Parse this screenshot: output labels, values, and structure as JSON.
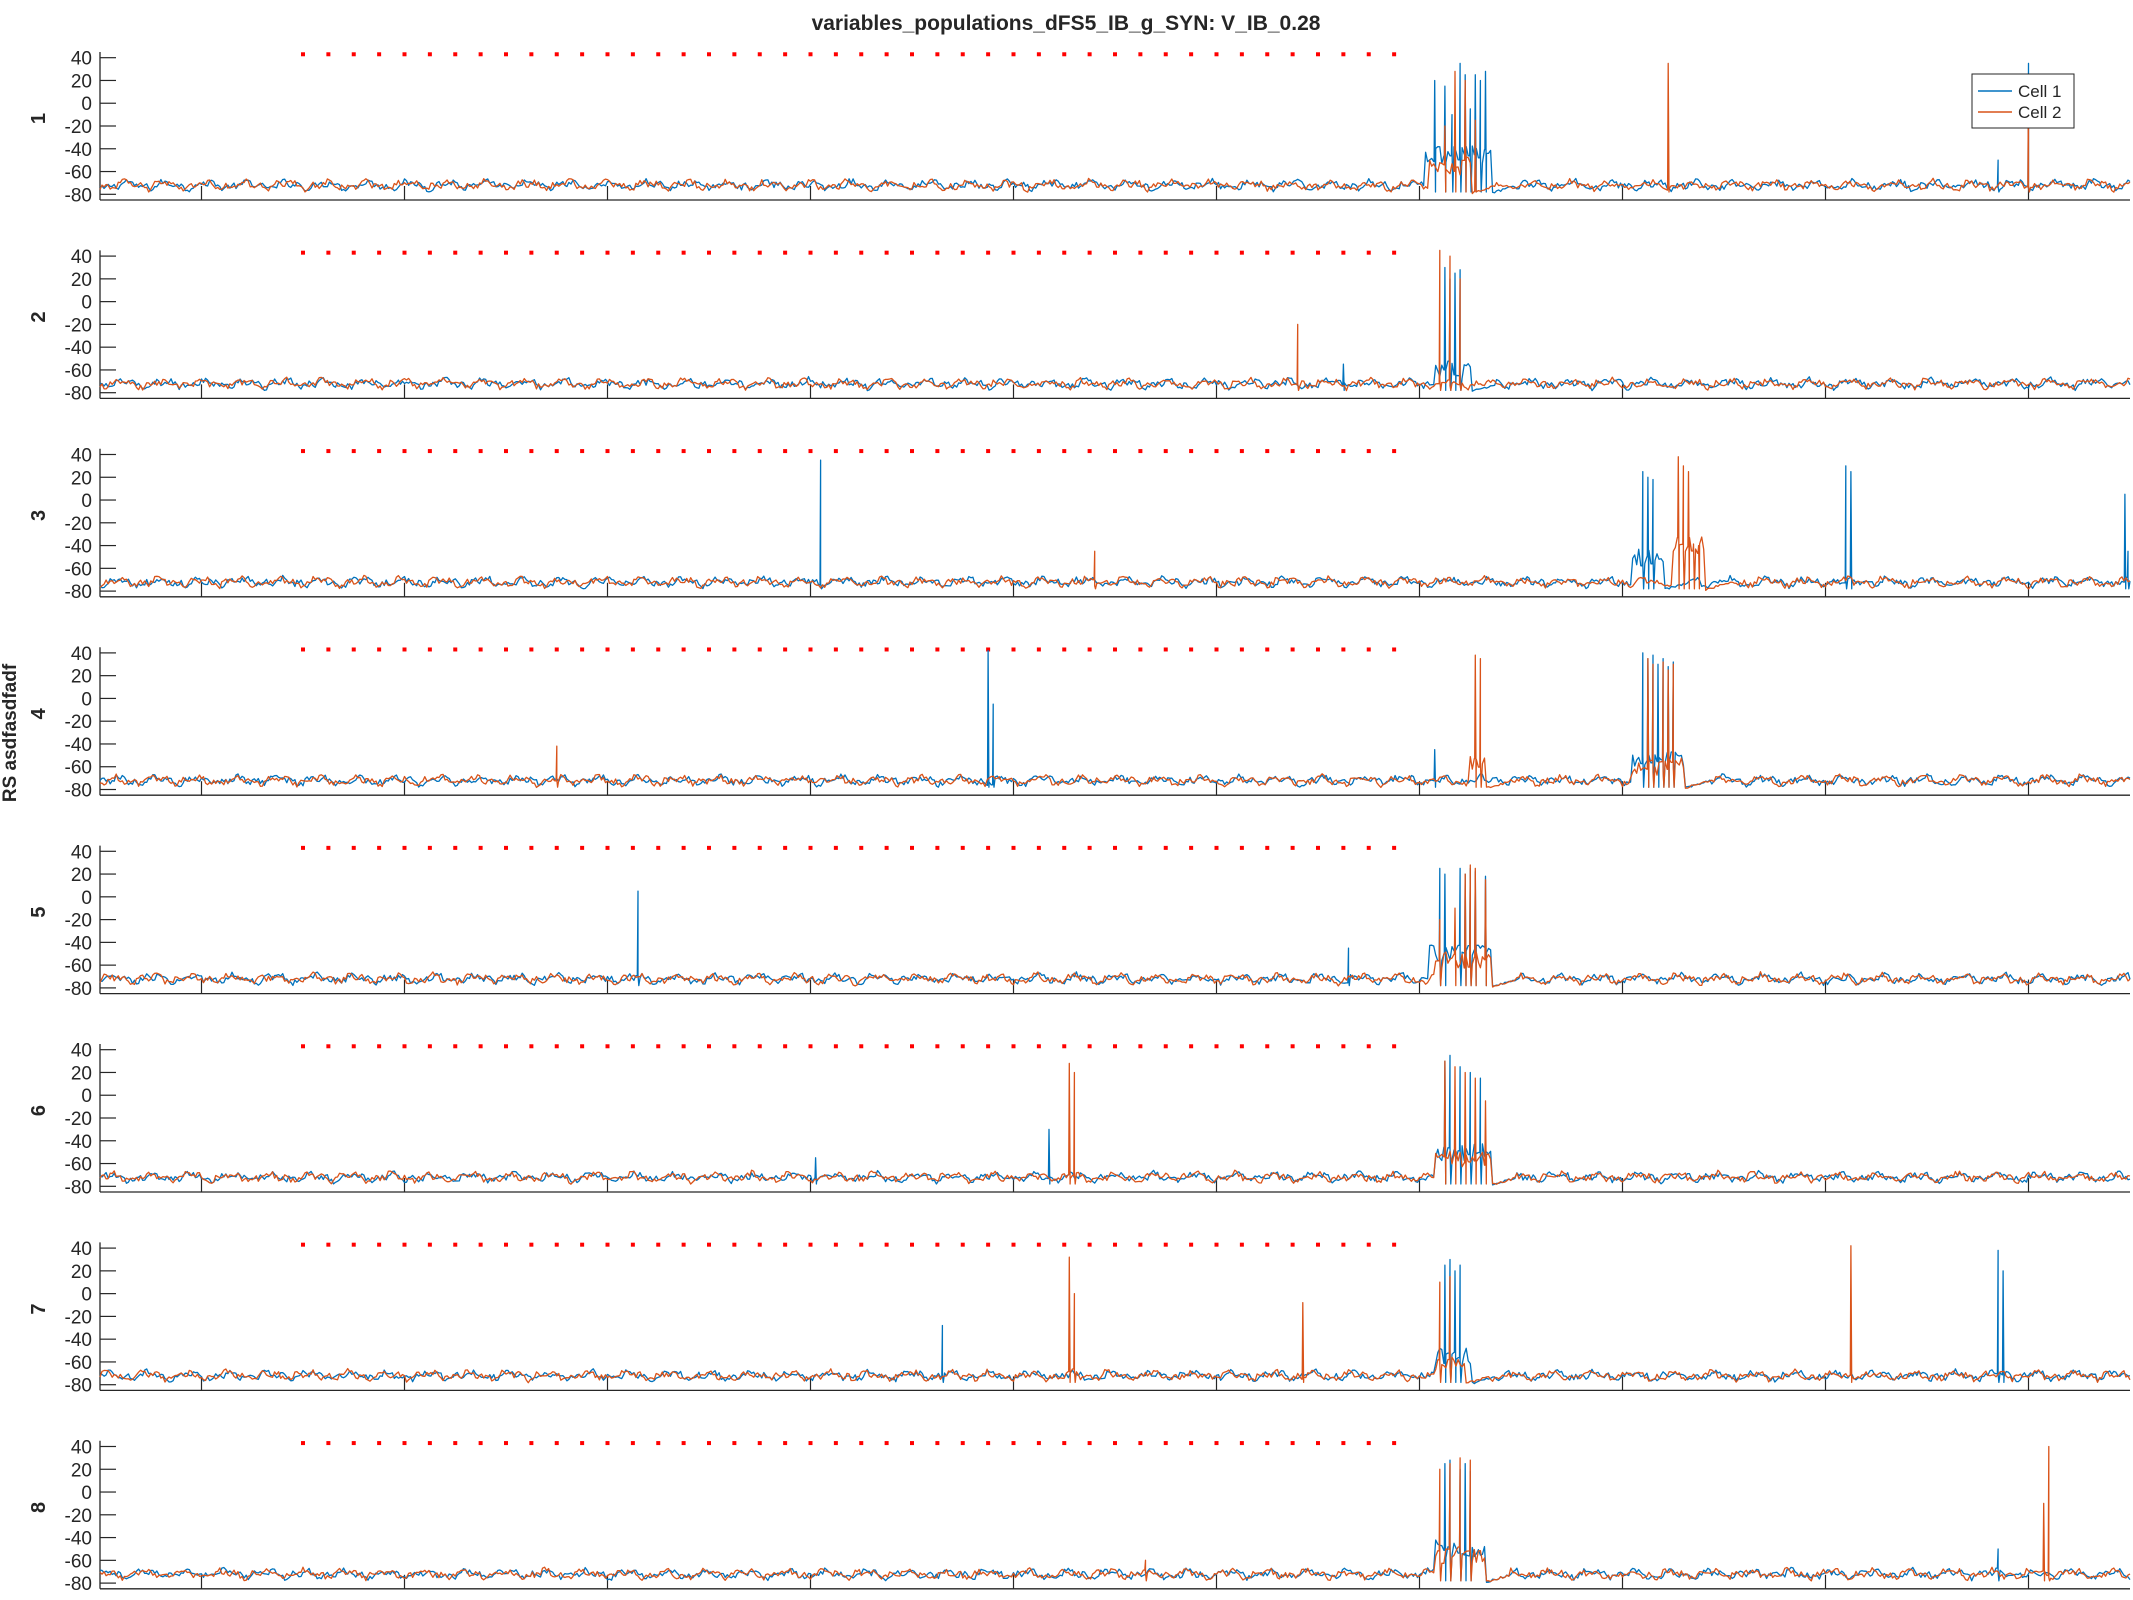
{
  "figure": {
    "title": "variables_populations_dFS5_IB_g_SYN: V_IB_0.28",
    "ylabel": "RS asdfasdfadf"
  },
  "chart_data": {
    "type": "line",
    "title": "variables_populations_dFS5_IB_g_SYN: V_IB_0.28",
    "ylabel": "RS asdfasdfadf",
    "xlim": [
      300,
      2300
    ],
    "ylim": [
      -85,
      45
    ],
    "x_ticks": [
      400,
      600,
      800,
      1000,
      1200,
      1400,
      1600,
      1800,
      2000,
      2200
    ],
    "y_ticks": [
      40,
      20,
      0,
      -20,
      -40,
      -60,
      -80
    ],
    "grid": false,
    "legend": {
      "entries": [
        "Cell 1",
        "Cell 2"
      ],
      "placement": "top-right",
      "panel": 1
    },
    "stimulus_markers": {
      "x_start": 500,
      "x_end": 1580,
      "step": 25,
      "y": 43,
      "color": "#ff0000"
    },
    "series_colors": {
      "Cell 1": "#0072BD",
      "Cell 2": "#D95319"
    },
    "baseline": -72,
    "panels": [
      {
        "label": "1",
        "cell1": [
          [
            1615,
            20
          ],
          [
            1625,
            15
          ],
          [
            1632,
            -10
          ],
          [
            1640,
            35
          ],
          [
            1645,
            25
          ],
          [
            1650,
            -5
          ],
          [
            1655,
            25
          ],
          [
            1660,
            20
          ],
          [
            1665,
            28
          ],
          [
            2170,
            -50
          ],
          [
            2200,
            35
          ]
        ],
        "cell2": [
          [
            1625,
            -20
          ],
          [
            1635,
            28
          ],
          [
            1645,
            20
          ],
          [
            1655,
            -15
          ],
          [
            1845,
            35
          ],
          [
            2200,
            25
          ]
        ],
        "cell1_bursts": [
          [
            1605,
            1670,
            -45
          ]
        ],
        "cell2_bursts": [
          [
            1610,
            1650,
            -55
          ]
        ]
      },
      {
        "label": "2",
        "cell1": [
          [
            1525,
            -55
          ],
          [
            1625,
            30
          ],
          [
            1630,
            20
          ],
          [
            1635,
            25
          ],
          [
            1640,
            28
          ]
        ],
        "cell2": [
          [
            1480,
            -20
          ],
          [
            1620,
            45
          ],
          [
            1630,
            40
          ],
          [
            1640,
            20
          ]
        ],
        "cell1_bursts": [
          [
            1615,
            1650,
            -60
          ]
        ],
        "cell2_bursts": []
      },
      {
        "label": "3",
        "cell1": [
          [
            1010,
            35
          ],
          [
            1820,
            25
          ],
          [
            1825,
            20
          ],
          [
            1830,
            18
          ],
          [
            2020,
            30
          ],
          [
            2025,
            25
          ],
          [
            2295,
            5
          ],
          [
            2298,
            -45
          ]
        ],
        "cell2": [
          [
            1280,
            -45
          ],
          [
            1855,
            38
          ],
          [
            1860,
            30
          ],
          [
            1865,
            25
          ],
          [
            1870,
            -40
          ],
          [
            1875,
            -40
          ]
        ],
        "cell1_bursts": [
          [
            1810,
            1840,
            -50
          ]
        ],
        "cell2_bursts": [
          [
            1850,
            1880,
            -40
          ]
        ]
      },
      {
        "label": "4",
        "cell1": [
          [
            1175,
            42
          ],
          [
            1180,
            -5
          ],
          [
            1615,
            -45
          ],
          [
            1820,
            40
          ],
          [
            1825,
            35
          ],
          [
            1830,
            38
          ],
          [
            1835,
            30
          ],
          [
            1840,
            35
          ],
          [
            1845,
            28
          ],
          [
            1850,
            32
          ]
        ],
        "cell2": [
          [
            750,
            -42
          ],
          [
            1655,
            38
          ],
          [
            1660,
            35
          ],
          [
            1825,
            35
          ],
          [
            1830,
            30
          ],
          [
            1840,
            32
          ],
          [
            1845,
            25
          ],
          [
            1850,
            30
          ]
        ],
        "cell1_bursts": [
          [
            1810,
            1860,
            -55
          ]
        ],
        "cell2_bursts": [
          [
            1650,
            1665,
            -55
          ],
          [
            1810,
            1860,
            -60
          ]
        ]
      },
      {
        "label": "5",
        "cell1": [
          [
            830,
            5
          ],
          [
            1530,
            -45
          ],
          [
            1620,
            25
          ],
          [
            1625,
            20
          ],
          [
            1640,
            25
          ],
          [
            1645,
            20
          ],
          [
            1650,
            25
          ],
          [
            1655,
            22
          ],
          [
            1665,
            18
          ]
        ],
        "cell2": [
          [
            1620,
            -20
          ],
          [
            1635,
            -10
          ],
          [
            1645,
            20
          ],
          [
            1650,
            28
          ],
          [
            1655,
            25
          ],
          [
            1665,
            15
          ]
        ],
        "cell1_bursts": [
          [
            1610,
            1670,
            -50
          ]
        ],
        "cell2_bursts": [
          [
            1615,
            1670,
            -55
          ]
        ]
      },
      {
        "label": "6",
        "cell1": [
          [
            1005,
            -55
          ],
          [
            1235,
            -30
          ],
          [
            1625,
            30
          ],
          [
            1630,
            35
          ],
          [
            1640,
            25
          ],
          [
            1650,
            20
          ],
          [
            1660,
            15
          ]
        ],
        "cell2": [
          [
            1255,
            28
          ],
          [
            1260,
            20
          ],
          [
            1625,
            30
          ],
          [
            1635,
            25
          ],
          [
            1645,
            20
          ],
          [
            1655,
            15
          ],
          [
            1665,
            -5
          ]
        ],
        "cell1_bursts": [
          [
            1615,
            1670,
            -50
          ]
        ],
        "cell2_bursts": [
          [
            1615,
            1670,
            -55
          ]
        ]
      },
      {
        "label": "7",
        "cell1": [
          [
            1130,
            -28
          ],
          [
            1625,
            25
          ],
          [
            1630,
            30
          ],
          [
            1635,
            20
          ],
          [
            1640,
            25
          ],
          [
            2170,
            38
          ],
          [
            2175,
            20
          ]
        ],
        "cell2": [
          [
            1255,
            32
          ],
          [
            1260,
            0
          ],
          [
            1485,
            -8
          ],
          [
            1620,
            10
          ],
          [
            1630,
            15
          ],
          [
            2025,
            42
          ]
        ],
        "cell1_bursts": [
          [
            1615,
            1650,
            -55
          ]
        ],
        "cell2_bursts": [
          [
            1615,
            1645,
            -60
          ]
        ]
      },
      {
        "label": "8",
        "cell1": [
          [
            1625,
            25
          ],
          [
            1630,
            28
          ],
          [
            1640,
            20
          ],
          [
            1645,
            25
          ],
          [
            1650,
            18
          ],
          [
            2170,
            -50
          ]
        ],
        "cell2": [
          [
            1330,
            -60
          ],
          [
            1620,
            20
          ],
          [
            1630,
            25
          ],
          [
            1640,
            30
          ],
          [
            1650,
            28
          ],
          [
            2215,
            -10
          ],
          [
            2220,
            40
          ]
        ],
        "cell1_bursts": [
          [
            1615,
            1665,
            -50
          ]
        ],
        "cell2_bursts": [
          [
            1615,
            1665,
            -55
          ]
        ]
      }
    ]
  }
}
